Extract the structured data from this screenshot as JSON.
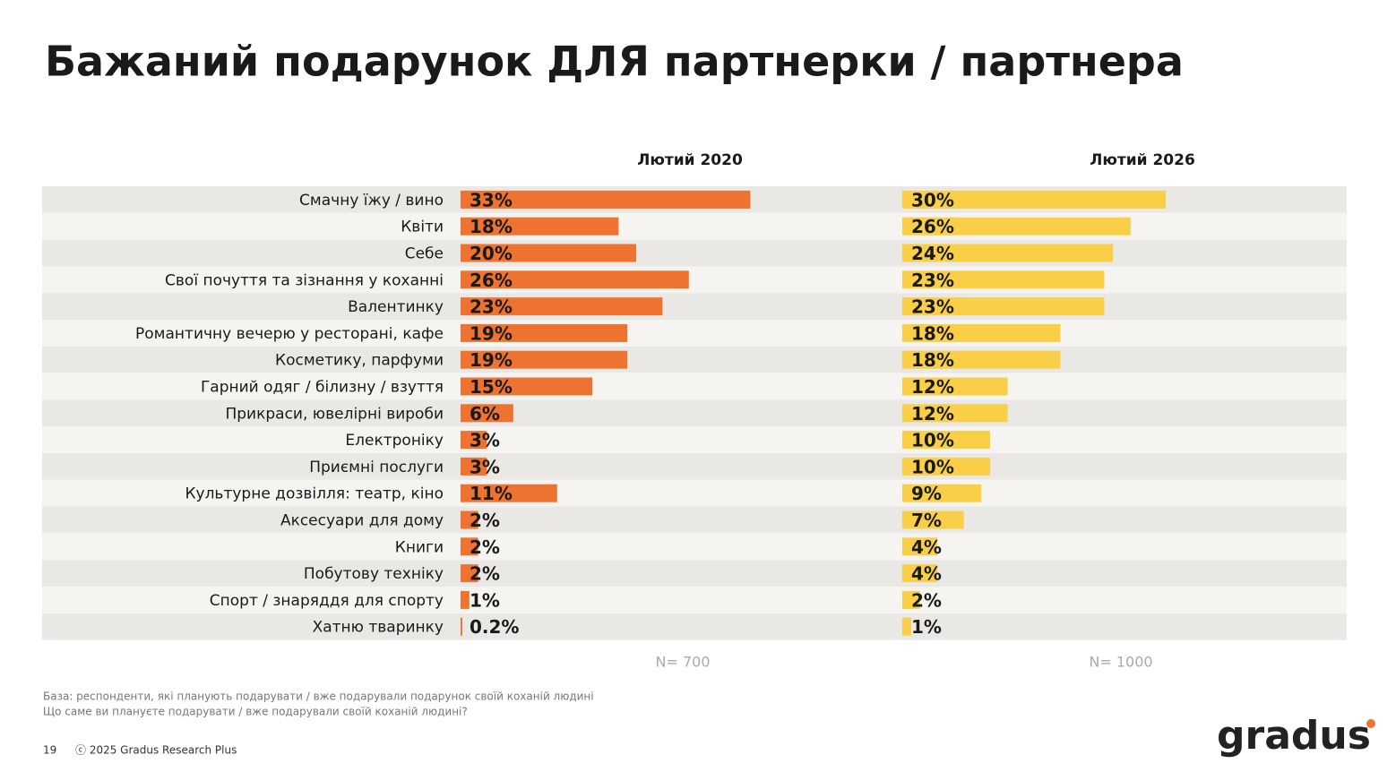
{
  "chart_data": {
    "type": "bar",
    "title": "Бажаний подарунок ДЛЯ партнерки / партнера",
    "categories": [
      "Смачну їжу / вино",
      "Квіти",
      "Себе",
      "Свої почуття та зізнання у коханні",
      "Валентинку",
      "Романтичну вечерю у ресторані, кафе",
      "Косметику, парфуми",
      "Гарний одяг / білизну / взуття",
      "Прикраси, ювелірні вироби",
      "Електроніку",
      "Приємні послуги",
      "Культурне дозвілля: театр, кіно",
      "Аксесуари для дому",
      "Книги",
      "Побутову техніку",
      "Спорт / знаряддя для спорту",
      "Хатню тваринку"
    ],
    "series": [
      {
        "name": "Лютий 2020",
        "color": "#ee7330",
        "note": "N= 700",
        "values": [
          33,
          18,
          20,
          26,
          23,
          19,
          19,
          15,
          6,
          3,
          3,
          11,
          2,
          2,
          2,
          1,
          0.2
        ],
        "value_labels": [
          "33%",
          "18%",
          "20%",
          "26%",
          "23%",
          "19%",
          "19%",
          "15%",
          "6%",
          "3%",
          "3%",
          "11%",
          "2%",
          "2%",
          "2%",
          "1%",
          "0.2%"
        ]
      },
      {
        "name": "Лютий 2026",
        "color": "#f8cf47",
        "note": "N= 1000",
        "values": [
          30,
          26,
          24,
          23,
          23,
          18,
          18,
          12,
          12,
          10,
          10,
          9,
          7,
          4,
          4,
          2,
          1
        ],
        "value_labels": [
          "30%",
          "26%",
          "24%",
          "23%",
          "23%",
          "18%",
          "18%",
          "12%",
          "12%",
          "10%",
          "10%",
          "9%",
          "7%",
          "4%",
          "4%",
          "2%",
          "1%"
        ]
      }
    ]
  },
  "footer": {
    "base": "База: респонденти, які планують подарувати / вже подарували подарунок своїй коханій людині",
    "question": "Що саме ви плануєте подарувати / вже подарували своїй коханій людині?",
    "page": "19",
    "copyright": "ⓒ 2025 Gradus Research Plus",
    "logo": "gradus"
  }
}
